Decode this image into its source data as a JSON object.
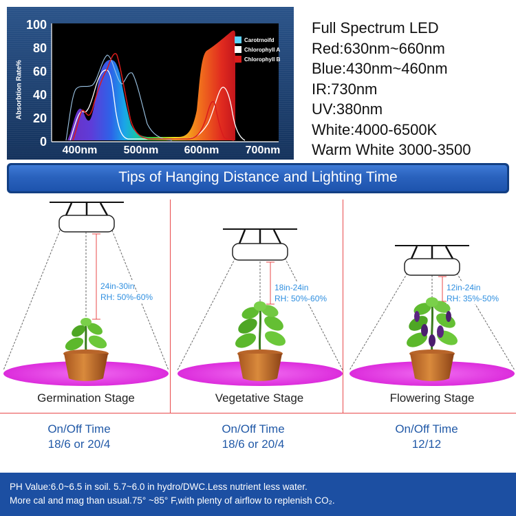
{
  "spectrum_chart": {
    "y_ticks": [
      "100",
      "80",
      "60",
      "40",
      "20",
      "0"
    ],
    "x_ticks": [
      "400nm",
      "500nm",
      "600nm",
      "700nm"
    ],
    "ylabel": "Absorbtion Rate%",
    "legend": [
      {
        "label": "Carotrnoifd",
        "color": "#5fd3ff"
      },
      {
        "label": "Chlorophyll A",
        "color": "#ffffff"
      },
      {
        "label": "Chlorophyll B",
        "color": "#d91c1c"
      }
    ],
    "x_range": [
      350,
      750
    ],
    "y_range": [
      0,
      100
    ]
  },
  "specs": [
    "Full Spectrum LED",
    "Red:630nm~660nm",
    "Blue:430nm~460nm",
    "IR:730nm",
    "UV:380nm",
    "White:4000-6500K",
    "Warm White 3000-3500"
  ],
  "tips_title": "Tips of Hanging Distance and Lighting Time",
  "stages": [
    {
      "name": "Germination Stage",
      "distance": "24in-30in",
      "rh": "RH: 50%-60%",
      "onoff_title": "On/Off Time",
      "onoff_value": "18/6 or 20/4"
    },
    {
      "name": "Vegetative Stage",
      "distance": "18in-24in",
      "rh": "RH: 50%-60%",
      "onoff_title": "On/Off Time",
      "onoff_value": "18/6 or 20/4"
    },
    {
      "name": "Flowering Stage",
      "distance": "12in-24in",
      "rh": "RH: 35%-50%",
      "onoff_title": "On/Off Time",
      "onoff_value": "12/12"
    }
  ],
  "note": {
    "line1": "PH Value:6.0~6.5 in soil. 5.7~6.0 in hydro/DWC.Less nutrient less water.",
    "line2": "More cal and mag than usual.75°  ~85°  F,with plenty of airflow to replenish CO₂."
  },
  "colors": {
    "banner": "#2a62bd",
    "note_bg": "#1c4fa2",
    "divider": "#e8484a",
    "light_disc": "#e43ce4",
    "dimension_text": "#2f8fe0"
  }
}
